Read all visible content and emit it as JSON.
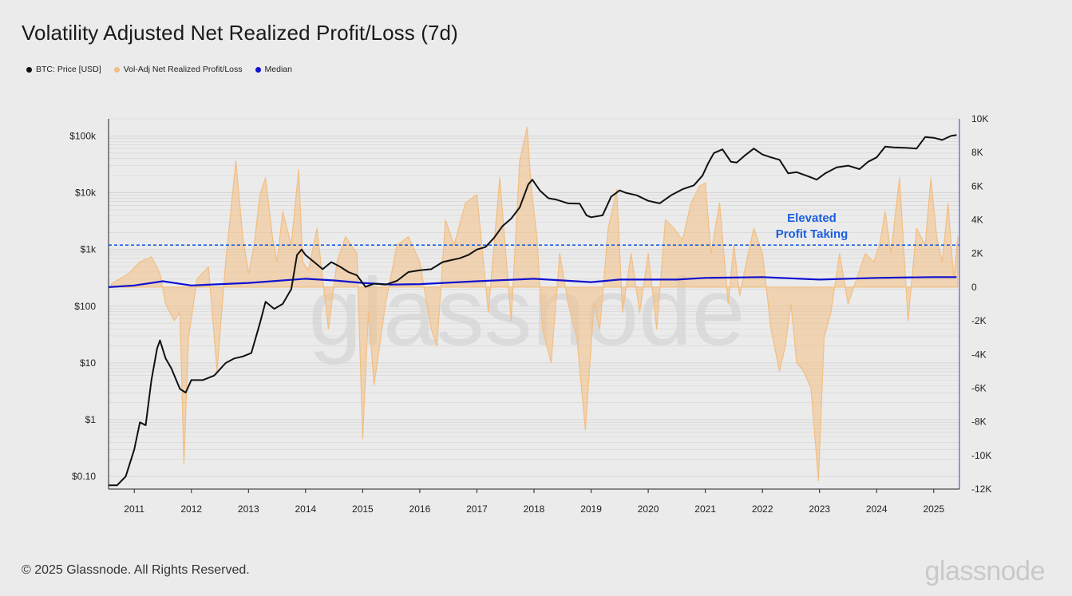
{
  "header": {
    "title": "Volatility Adjusted Net Realized Profit/Loss (7d)"
  },
  "legend": {
    "items": [
      {
        "label": "BTC: Price [USD]",
        "color": "#111111"
      },
      {
        "label": "Vol-Adj Net Realized Profit/Loss",
        "color": "#f2bf83"
      },
      {
        "label": "Median",
        "color": "#1010d0"
      }
    ]
  },
  "footer": {
    "copyright": "© 2025 Glassnode. All Rights Reserved.",
    "brand": "glassnode",
    "watermark": "glassnode"
  },
  "chart_data": {
    "type": "line",
    "x_axis": {
      "tick_labels": [
        "2011",
        "2012",
        "2013",
        "2014",
        "2015",
        "2016",
        "2017",
        "2018",
        "2019",
        "2020",
        "2021",
        "2022",
        "2023",
        "2024",
        "2025"
      ],
      "range": [
        2010.55,
        2025.45
      ]
    },
    "y_left": {
      "scale": "log",
      "tick_labels": [
        "$0.10",
        "$1",
        "$10",
        "$100",
        "$1k",
        "$10k",
        "$100k"
      ],
      "tick_values": [
        0.1,
        1,
        10,
        100,
        1000,
        10000,
        100000
      ],
      "range": [
        0.06,
        200000
      ]
    },
    "y_right": {
      "scale": "linear",
      "tick_labels": [
        "-12K",
        "-10K",
        "-8K",
        "-6K",
        "-4K",
        "-2K",
        "0",
        "2K",
        "4K",
        "6K",
        "8K",
        "10K"
      ],
      "range": [
        -12000,
        10000
      ]
    },
    "threshold": {
      "value": 2500,
      "style": "dashed",
      "color": "#1a5fe0",
      "label_lines": [
        "Elevated",
        "Profit Taking"
      ]
    },
    "series": [
      {
        "name": "BTC: Price [USD]",
        "axis": "left",
        "color": "#111111",
        "x": [
          2010.55,
          2010.7,
          2010.85,
          2011.0,
          2011.1,
          2011.2,
          2011.3,
          2011.4,
          2011.45,
          2011.55,
          2011.65,
          2011.8,
          2011.9,
          2012.0,
          2012.2,
          2012.4,
          2012.6,
          2012.75,
          2012.9,
          2013.05,
          2013.2,
          2013.3,
          2013.45,
          2013.6,
          2013.75,
          2013.85,
          2013.93,
          2014.0,
          2014.15,
          2014.3,
          2014.45,
          2014.6,
          2014.75,
          2014.9,
          2015.05,
          2015.2,
          2015.4,
          2015.6,
          2015.8,
          2016.0,
          2016.2,
          2016.4,
          2016.55,
          2016.7,
          2016.85,
          2017.0,
          2017.15,
          2017.3,
          2017.45,
          2017.6,
          2017.75,
          2017.9,
          2017.97,
          2018.1,
          2018.25,
          2018.4,
          2018.6,
          2018.8,
          2018.92,
          2019.0,
          2019.2,
          2019.35,
          2019.5,
          2019.6,
          2019.8,
          2020.0,
          2020.2,
          2020.4,
          2020.6,
          2020.8,
          2020.95,
          2021.05,
          2021.15,
          2021.3,
          2021.45,
          2021.55,
          2021.7,
          2021.85,
          2022.0,
          2022.15,
          2022.3,
          2022.45,
          2022.6,
          2022.8,
          2022.95,
          2023.1,
          2023.3,
          2023.5,
          2023.7,
          2023.85,
          2024.0,
          2024.15,
          2024.3,
          2024.5,
          2024.7,
          2024.85,
          2025.0,
          2025.15,
          2025.3,
          2025.4
        ],
        "y": [
          0.07,
          0.07,
          0.1,
          0.3,
          0.9,
          0.8,
          5,
          18,
          25,
          12,
          8,
          3.5,
          3,
          5,
          5,
          6,
          10,
          12,
          13,
          15,
          50,
          120,
          90,
          110,
          200,
          800,
          1000,
          800,
          600,
          450,
          600,
          500,
          400,
          350,
          220,
          250,
          240,
          280,
          400,
          430,
          450,
          600,
          650,
          700,
          800,
          1000,
          1100,
          1600,
          2600,
          3500,
          5500,
          14000,
          17000,
          11000,
          8000,
          7500,
          6500,
          6400,
          4000,
          3700,
          4000,
          8500,
          11000,
          10000,
          9000,
          7200,
          6500,
          9000,
          11500,
          13500,
          20000,
          33000,
          50000,
          58000,
          35000,
          34000,
          46000,
          60000,
          47000,
          42000,
          38000,
          22000,
          23000,
          19500,
          17000,
          22000,
          28000,
          30000,
          26000,
          35000,
          42000,
          65000,
          63000,
          62000,
          60000,
          96000,
          93000,
          85000,
          100000,
          104000
        ]
      },
      {
        "name": "Median",
        "axis": "right",
        "color": "#1010d0",
        "x": [
          2010.55,
          2011.0,
          2011.5,
          2012.0,
          2013.0,
          2014.0,
          2014.5,
          2015.0,
          2015.5,
          2016.0,
          2017.0,
          2018.0,
          2019.0,
          2019.5,
          2020.5,
          2021.0,
          2022.0,
          2023.0,
          2024.0,
          2025.0,
          2025.4
        ],
        "y": [
          0,
          100,
          350,
          100,
          250,
          500,
          400,
          250,
          150,
          180,
          350,
          500,
          300,
          450,
          450,
          550,
          600,
          450,
          550,
          600,
          600
        ]
      },
      {
        "name": "Vol-Adj Net Realized Profit/Loss",
        "axis": "right",
        "color": "#f2bf83",
        "x": [
          2010.6,
          2010.9,
          2011.1,
          2011.3,
          2011.45,
          2011.55,
          2011.7,
          2011.8,
          2011.87,
          2011.95,
          2012.1,
          2012.3,
          2012.45,
          2012.6,
          2012.78,
          2012.9,
          2013.0,
          2013.1,
          2013.2,
          2013.3,
          2013.42,
          2013.5,
          2013.6,
          2013.75,
          2013.88,
          2013.95,
          2014.05,
          2014.2,
          2014.4,
          2014.55,
          2014.7,
          2014.9,
          2015.0,
          2015.1,
          2015.2,
          2015.4,
          2015.6,
          2015.8,
          2016.0,
          2016.2,
          2016.3,
          2016.45,
          2016.6,
          2016.8,
          2017.0,
          2017.2,
          2017.4,
          2017.6,
          2017.75,
          2017.88,
          2017.95,
          2018.05,
          2018.15,
          2018.3,
          2018.45,
          2018.6,
          2018.75,
          2018.9,
          2019.05,
          2019.15,
          2019.3,
          2019.45,
          2019.55,
          2019.7,
          2019.85,
          2020.0,
          2020.15,
          2020.3,
          2020.45,
          2020.6,
          2020.75,
          2020.9,
          2021.0,
          2021.1,
          2021.25,
          2021.4,
          2021.5,
          2021.6,
          2021.75,
          2021.85,
          2022.0,
          2022.15,
          2022.3,
          2022.4,
          2022.5,
          2022.6,
          2022.72,
          2022.85,
          2022.98,
          2023.08,
          2023.2,
          2023.35,
          2023.5,
          2023.65,
          2023.8,
          2023.95,
          2024.05,
          2024.15,
          2024.25,
          2024.4,
          2024.55,
          2024.7,
          2024.85,
          2024.95,
          2025.05,
          2025.15,
          2025.25,
          2025.35,
          2025.42
        ],
        "y": [
          200,
          800,
          1500,
          1800,
          800,
          -1000,
          -2000,
          -1500,
          -10500,
          -3000,
          500,
          1200,
          -5000,
          1500,
          7500,
          3000,
          800,
          2500,
          5500,
          6500,
          3000,
          1500,
          4500,
          2500,
          7000,
          1500,
          1000,
          3500,
          -2500,
          1500,
          3000,
          2000,
          -9000,
          -1500,
          -5800,
          -1000,
          2500,
          3000,
          1500,
          -2500,
          -3500,
          4000,
          2500,
          5000,
          5500,
          -1500,
          6500,
          -2000,
          7500,
          9500,
          6000,
          3000,
          -2500,
          -4500,
          2000,
          -1000,
          -3000,
          -8500,
          -1000,
          -2500,
          3500,
          5800,
          -1500,
          2000,
          -1500,
          2000,
          -2500,
          4000,
          3500,
          2800,
          5000,
          6000,
          6200,
          2000,
          5000,
          -1000,
          2500,
          -500,
          2000,
          3500,
          2000,
          -2500,
          -5000,
          -3500,
          -1000,
          -4500,
          -5000,
          -6000,
          -11500,
          -3000,
          -1500,
          2000,
          -1000,
          500,
          2000,
          1500,
          2500,
          4500,
          2000,
          6500,
          -2000,
          3500,
          2500,
          6500,
          3000,
          1500,
          5000,
          500,
          3000
        ]
      }
    ],
    "annotations": [
      {
        "text": "Elevated",
        "color": "#1a5fe0"
      },
      {
        "text": "Profit Taking",
        "color": "#1a5fe0"
      }
    ]
  }
}
